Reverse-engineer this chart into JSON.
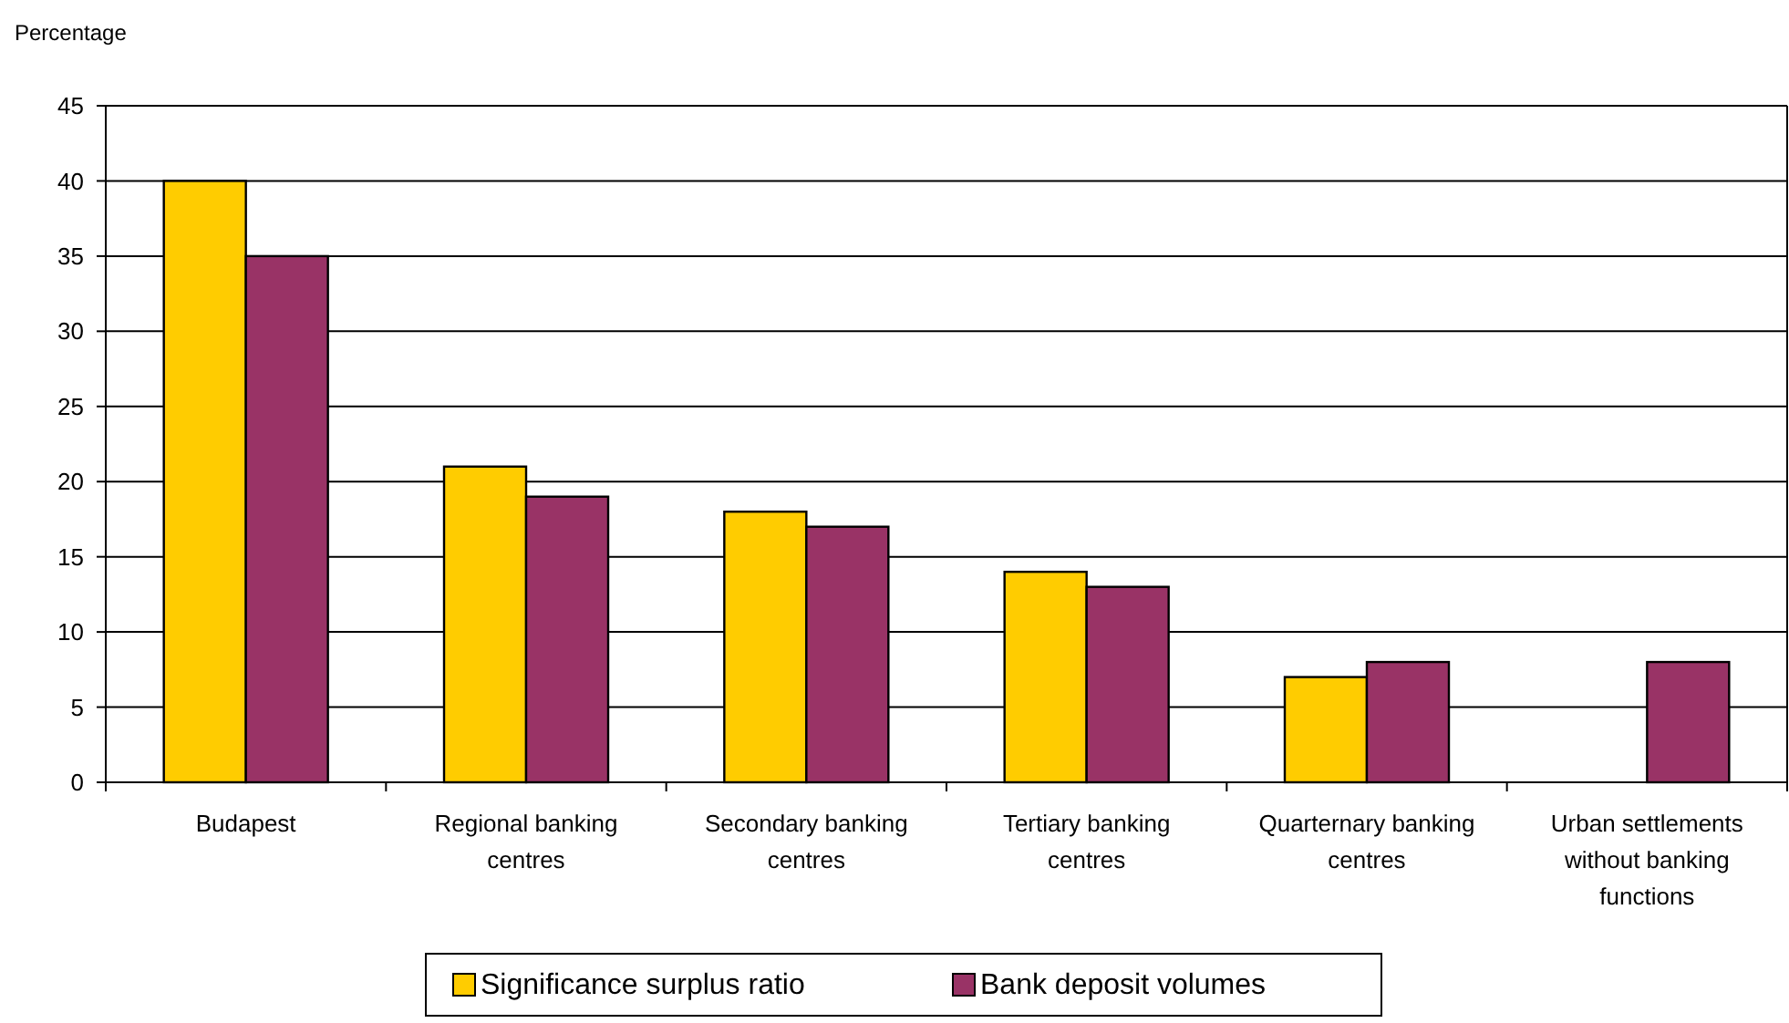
{
  "chart_data": {
    "type": "bar",
    "ylabel": "Percentage",
    "categories": [
      "Budapest",
      "Regional banking centres",
      "Secondary banking centres",
      "Tertiary banking centres",
      "Quarternary banking centres",
      "Urban settlements without banking functions"
    ],
    "series": [
      {
        "name": "Significance surplus ratio",
        "color": "#ffcc00",
        "values": [
          40,
          21,
          18,
          14,
          7,
          null
        ]
      },
      {
        "name": "Bank deposit volumes",
        "color": "#993366",
        "values": [
          35,
          19,
          17,
          13,
          8,
          8
        ]
      }
    ],
    "ylim": [
      0,
      45
    ],
    "yticks": [
      0,
      5,
      10,
      15,
      20,
      25,
      30,
      35,
      40,
      45
    ],
    "grid": "y",
    "legend": "bottom"
  }
}
